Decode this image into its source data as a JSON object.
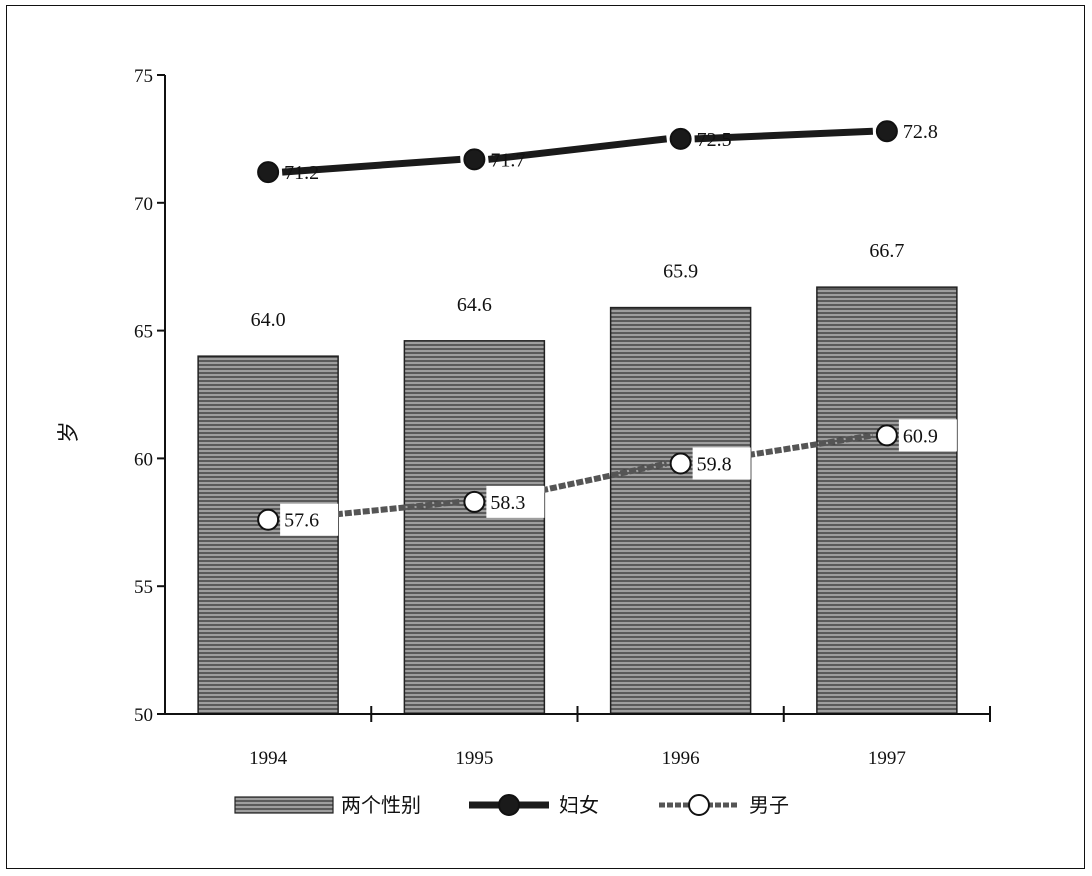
{
  "chart_data": {
    "type": "bar",
    "categories": [
      "1994",
      "1995",
      "1996",
      "1997"
    ],
    "ylim": [
      50,
      75
    ],
    "yticks": [
      50,
      55,
      60,
      65,
      70,
      75
    ],
    "ylabel": "岁",
    "xlabel": "",
    "title": "",
    "grid": false,
    "legend_position": "bottom",
    "series": [
      {
        "name": "两个性别",
        "kind": "bar",
        "values": [
          64.0,
          64.6,
          65.9,
          66.7
        ],
        "labels": [
          "64.0",
          "64.6",
          "65.9",
          "66.7"
        ],
        "color": "#6e6e6e"
      },
      {
        "name": "妇女",
        "kind": "line",
        "marker": "filled",
        "values": [
          71.2,
          71.7,
          72.5,
          72.8
        ],
        "labels": [
          "71.2",
          "71.7",
          "72.5",
          "72.8"
        ],
        "color": "#1a1a1a"
      },
      {
        "name": "男子",
        "kind": "line",
        "marker": "open",
        "values": [
          57.6,
          58.3,
          59.8,
          60.9
        ],
        "labels": [
          "57.6",
          "58.3",
          "59.8",
          "60.9"
        ],
        "color": "#555555"
      }
    ]
  }
}
